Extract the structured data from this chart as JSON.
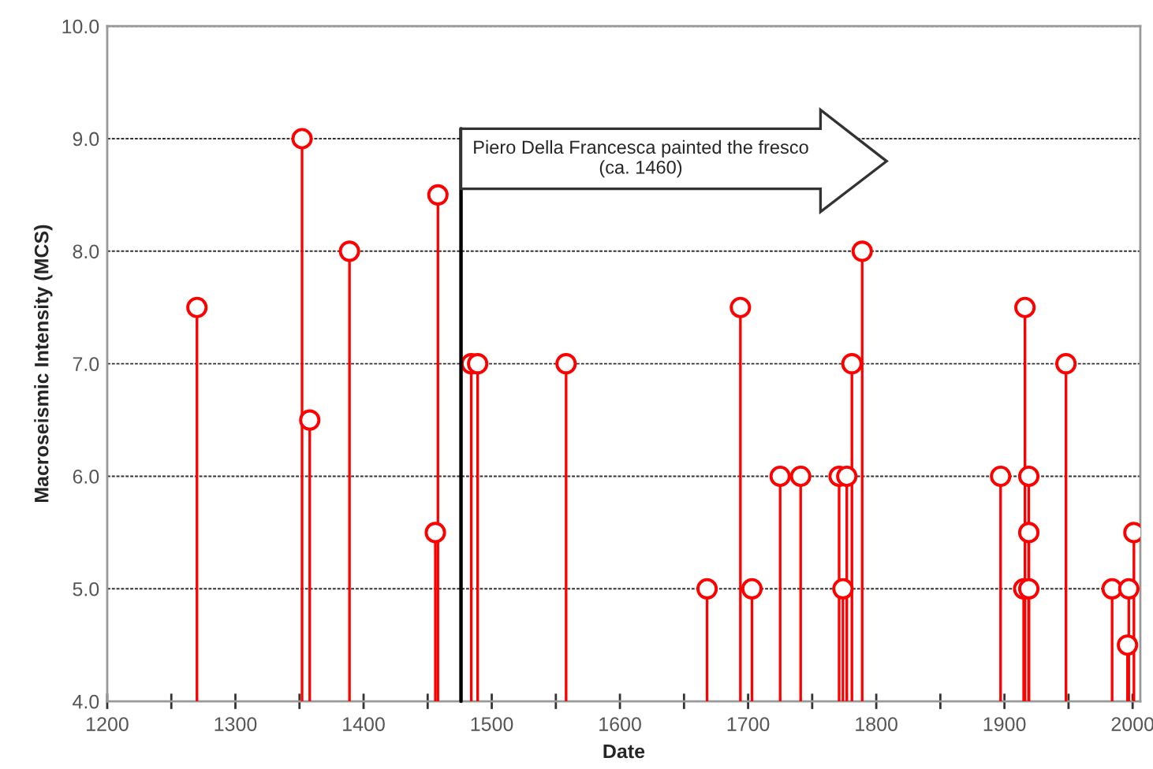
{
  "chart_data": {
    "type": "lollipop",
    "xlabel": "Date",
    "ylabel": "Macroseismic Intensity (MCS)",
    "x": [
      1270,
      1352,
      1358,
      1389,
      1456,
      1458,
      1484,
      1489,
      1558,
      1668,
      1694,
      1703,
      1725,
      1741,
      1771,
      1774,
      1777,
      1781,
      1789,
      1897,
      1915,
      1916,
      1919,
      1919,
      1919,
      1948,
      1984,
      1996,
      1997,
      2001
    ],
    "values": [
      7.5,
      9.0,
      6.5,
      8.0,
      5.5,
      8.5,
      7.0,
      7.0,
      7.0,
      5.0,
      7.5,
      5.0,
      6.0,
      6.0,
      6.0,
      5.0,
      6.0,
      7.0,
      8.0,
      6.0,
      5.0,
      7.5,
      6.0,
      5.5,
      5.0,
      7.0,
      5.0,
      4.5,
      5.0,
      5.5
    ],
    "color": "#ff0000",
    "marker": "circle",
    "xlim": [
      1200,
      2006
    ],
    "ylim": [
      4.0,
      10.0
    ],
    "xticks": [
      1200,
      {
        "value": 1250,
        "label": null
      },
      1300,
      {
        "value": 1350,
        "label": null
      },
      1400,
      {
        "value": 1450,
        "label": null
      },
      1500,
      {
        "value": 1550,
        "label": null
      },
      1600,
      {
        "value": 1650,
        "label": null
      },
      1700,
      {
        "value": 1750,
        "label": null
      },
      1800,
      {
        "value": 1850,
        "label": null
      },
      1900,
      {
        "value": 1950,
        "label": null
      },
      2000
    ],
    "yticks": [
      {
        "value": 4.0,
        "label": "4.0"
      },
      {
        "value": 5.0,
        "label": "5.0"
      },
      {
        "value": 6.0,
        "label": "6.0"
      },
      {
        "value": 7.0,
        "label": "7.0"
      },
      {
        "value": 8.0,
        "label": "8.0"
      },
      {
        "value": 9.0,
        "label": "9.0"
      },
      {
        "value": 10.0,
        "label": "10.0"
      }
    ],
    "grid": "y",
    "ref_lines": [
      {
        "axis": "x",
        "value": 1476,
        "label": "Piero Della Francesca painted the fresco\n(ca. 1460)",
        "color": "#000000"
      }
    ]
  }
}
